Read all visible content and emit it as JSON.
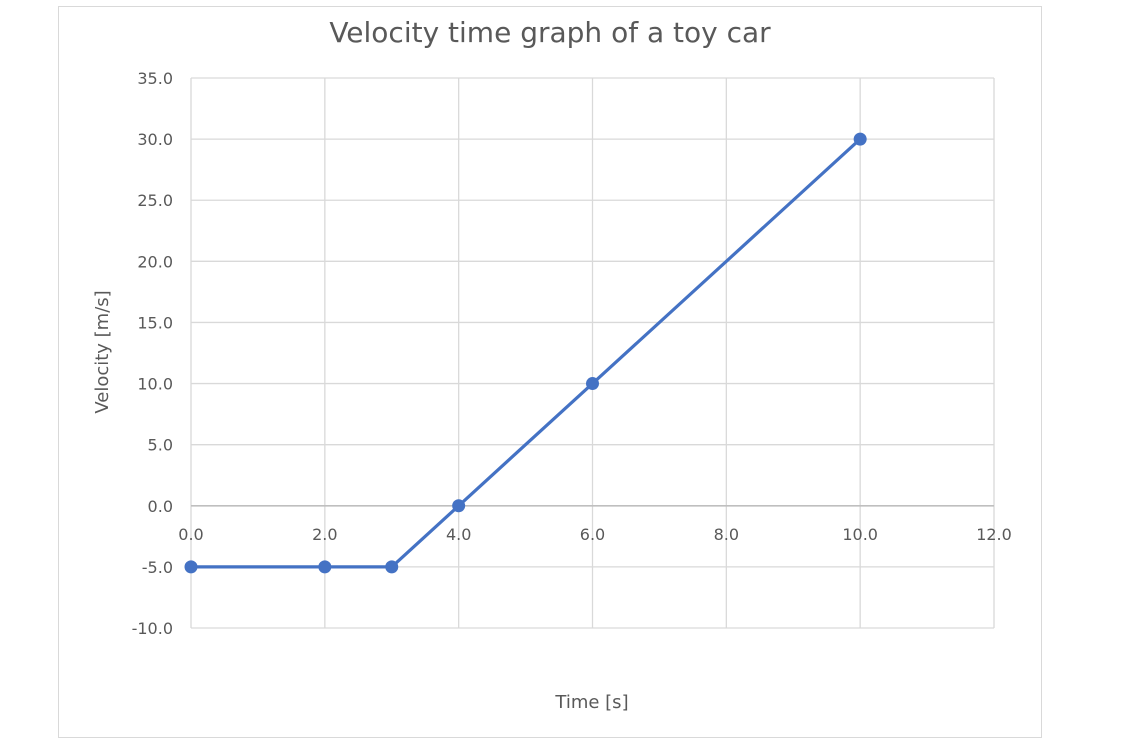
{
  "chart_data": {
    "type": "line",
    "title": "Velocity time graph of a toy car",
    "xlabel": "Time [s]",
    "ylabel": "Velocity [m/s]",
    "xlim": [
      0,
      12
    ],
    "ylim": [
      -10,
      35
    ],
    "x_ticks": [
      "0.0",
      "2.0",
      "4.0",
      "6.0",
      "8.0",
      "10.0",
      "12.0"
    ],
    "y_ticks": [
      "35.0",
      "30.0",
      "25.0",
      "20.0",
      "15.0",
      "10.0",
      "5.0",
      "0.0",
      "-5.0",
      "-10.0"
    ],
    "x_tick_values": [
      0,
      2,
      4,
      6,
      8,
      10,
      12
    ],
    "y_tick_values": [
      35,
      30,
      25,
      20,
      15,
      10,
      5,
      0,
      -5,
      -10
    ],
    "grid": true,
    "series": [
      {
        "x": [
          0,
          2,
          3,
          4,
          6,
          10
        ],
        "y": [
          -5,
          -5,
          -5,
          0,
          10,
          30
        ],
        "color": "#4472c4"
      }
    ]
  }
}
